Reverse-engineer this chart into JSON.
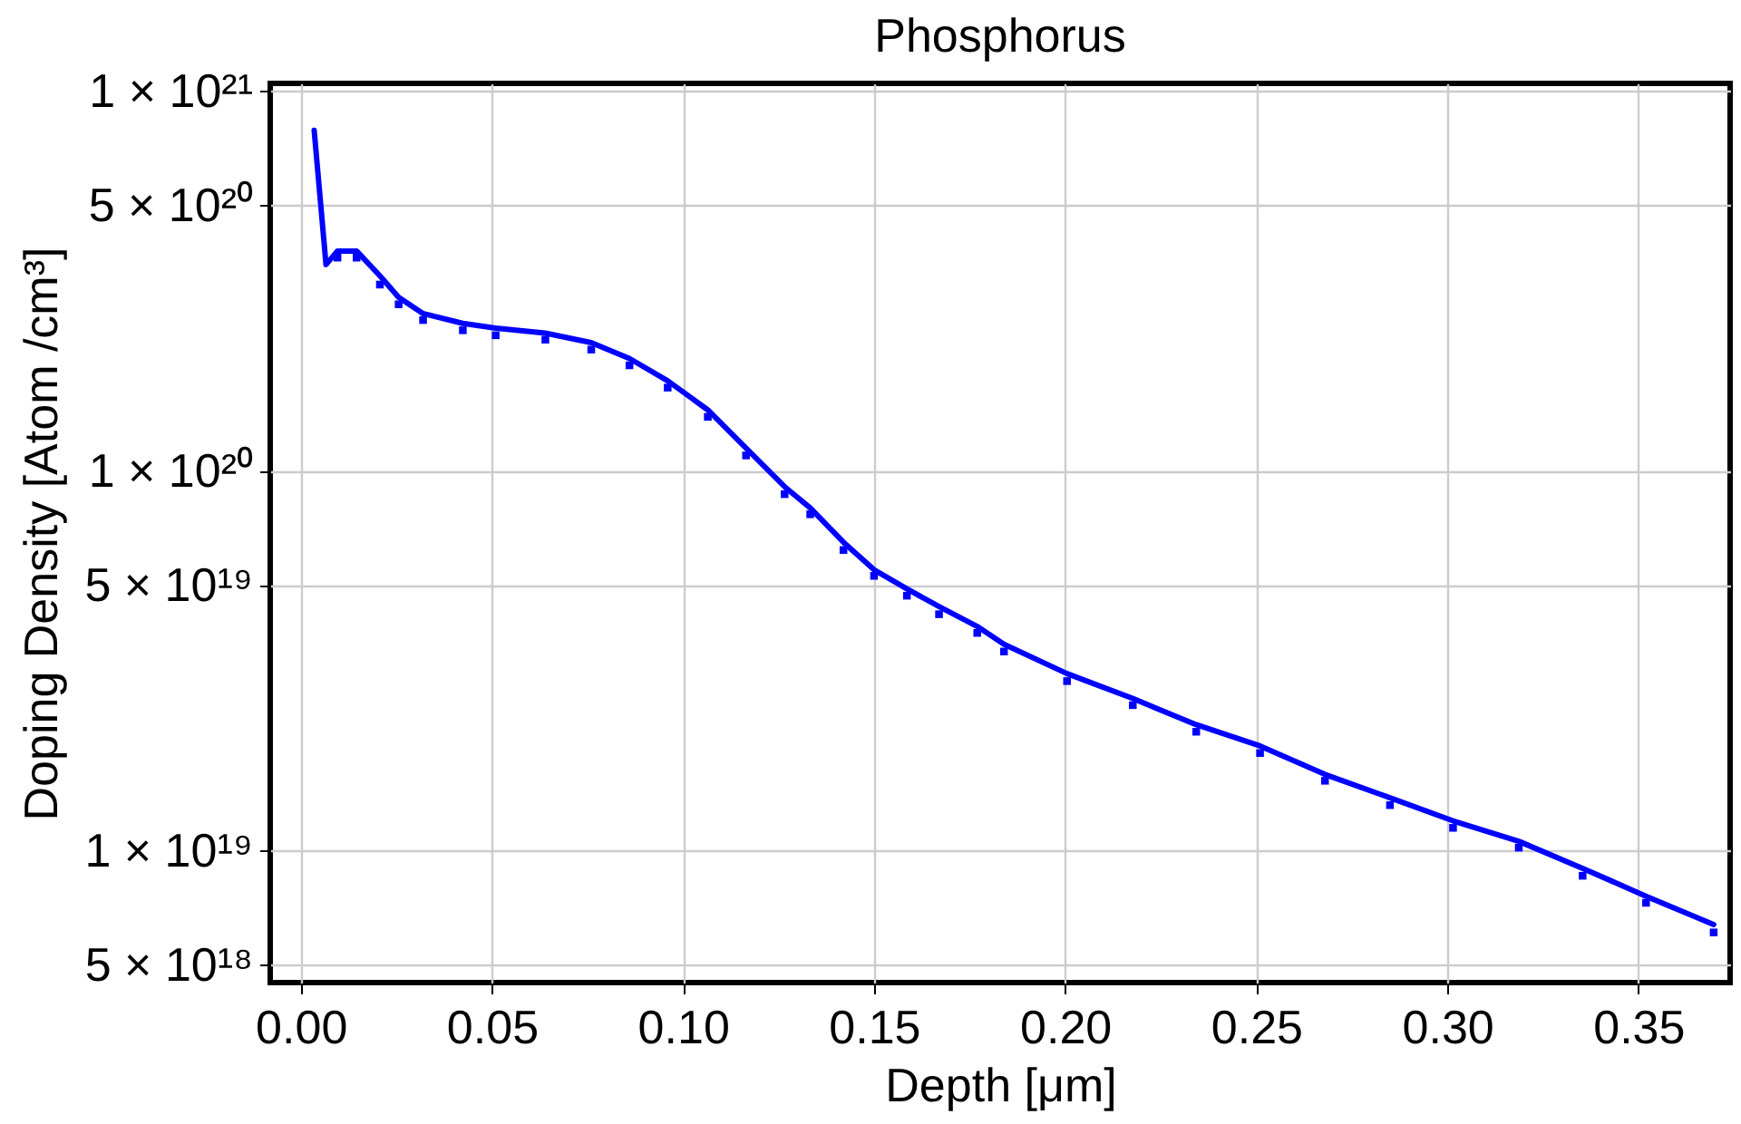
{
  "chart_data": {
    "type": "line",
    "title": "Phosphorus",
    "xlabel": "Depth [μm]",
    "ylabel": "Doping Density  [Atom /cm³]",
    "log": "y",
    "grid": true,
    "xlim": [
      -0.008,
      0.374
    ],
    "ylim": [
      4.5e+18,
      1.05e+21
    ],
    "xticks": [
      {
        "value": 0,
        "label": "0.00"
      },
      0.05,
      {
        "value": 0.1,
        "label": "0.10"
      },
      0.15,
      {
        "value": 0.2,
        "label": "0.20"
      },
      0.25,
      {
        "value": 0.3,
        "label": "0.30"
      },
      0.35
    ],
    "yticks": [
      {
        "value": 5e+18,
        "label": "5 × 10¹⁸"
      },
      {
        "value": 1e+19,
        "label": "1 × 10¹⁹"
      },
      {
        "value": 5e+19,
        "label": "5 × 10¹⁹"
      },
      {
        "value": 1e+20,
        "label": "1 × 10²⁰"
      },
      {
        "value": 5e+20,
        "label": "5 × 10²⁰"
      },
      {
        "value": 1e+21,
        "label": "1 × 10²¹"
      }
    ],
    "series": [
      {
        "color": "#0000ff",
        "marker": "none",
        "line_style": "solid",
        "x": [
          0.0035,
          0.0066,
          0.0096,
          0.0146,
          0.0207,
          0.0256,
          0.032,
          0.0424,
          0.051,
          0.064,
          0.076,
          0.086,
          0.096,
          0.1065,
          0.1165,
          0.1266,
          0.1333,
          0.142,
          0.15,
          0.1586,
          0.167,
          0.177,
          0.184,
          0.2005,
          0.2177,
          0.2343,
          0.251,
          0.268,
          0.285,
          0.3015,
          0.3187,
          0.3354,
          0.352,
          0.3697
        ],
        "values": [
          7.9e+20,
          3.5e+20,
          3.8e+20,
          3.8e+20,
          3.27e+20,
          2.87e+20,
          2.6e+20,
          2.45e+20,
          2.38e+20,
          2.31e+20,
          2.18e+20,
          1.98e+20,
          1.73e+20,
          1.45e+20,
          1.15e+20,
          9.1e+19,
          8e+19,
          6.5e+19,
          5.5e+19,
          4.9e+19,
          4.4e+19,
          3.9e+19,
          3.5e+19,
          2.93e+19,
          2.52e+19,
          2.15e+19,
          1.89e+19,
          1.59e+19,
          1.38e+19,
          1.2e+19,
          1.06e+19,
          9e+18,
          7.6e+18,
          6.4e+18
        ]
      },
      {
        "type": "scatter",
        "color": "#0000ff",
        "marker": "square",
        "x": [
          0.0096,
          0.0146,
          0.0207,
          0.0256,
          0.032,
          0.0424,
          0.051,
          0.064,
          0.076,
          0.086,
          0.096,
          0.1065,
          0.1165,
          0.1266,
          0.1333,
          0.142,
          0.15,
          0.1586,
          0.167,
          0.177,
          0.184,
          0.2005,
          0.2177,
          0.2343,
          0.251,
          0.268,
          0.285,
          0.3015,
          0.3187,
          0.3354,
          0.352,
          0.3697
        ],
        "values": [
          3.65e+20,
          3.65e+20,
          3.1e+20,
          2.75e+20,
          2.5e+20,
          2.35e+20,
          2.28e+20,
          2.22e+20,
          2.09e+20,
          1.9e+20,
          1.66e+20,
          1.39e+20,
          1.1e+20,
          8.7e+19,
          7.7e+19,
          6.2e+19,
          5.3e+19,
          4.7e+19,
          4.2e+19,
          3.75e+19,
          3.35e+19,
          2.8e+19,
          2.42e+19,
          2.06e+19,
          1.81e+19,
          1.53e+19,
          1.32e+19,
          1.15e+19,
          1.02e+19,
          8.6e+18,
          7.3e+18,
          6.1e+18
        ]
      }
    ]
  }
}
